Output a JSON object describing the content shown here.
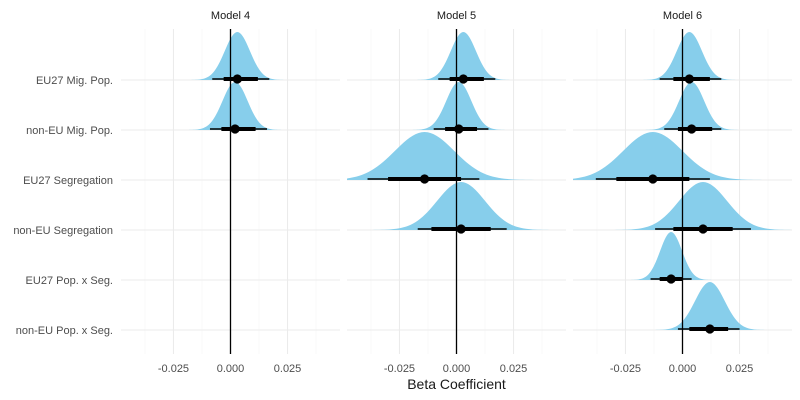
{
  "chart_data": {
    "type": "ridge-interval",
    "xlabel": "Beta Coefficient",
    "ylabel": "",
    "xlim": [
      -0.048,
      0.048
    ],
    "x_ticks": [
      -0.025,
      0.0,
      0.025
    ],
    "x_tick_labels": [
      "-0.025",
      "0.000",
      "0.025"
    ],
    "categories": [
      "EU27 Mig. Pop.",
      "non-EU Mig. Pop.",
      "EU27 Segregation",
      "non-EU Segregation",
      "EU27 Pop. x Seg.",
      "non-EU Pop. x Seg."
    ],
    "facets": [
      {
        "title": "Model 4",
        "estimates": [
          {
            "term": "EU27 Mig. Pop.",
            "mean": 0.003,
            "sd": 0.0055,
            "ci66": [
              -0.003,
              0.012
            ],
            "ci95": [
              -0.008,
              0.017
            ]
          },
          {
            "term": "non-EU Mig. Pop.",
            "mean": 0.002,
            "sd": 0.0055,
            "ci66": [
              -0.004,
              0.011
            ],
            "ci95": [
              -0.009,
              0.016
            ]
          }
        ]
      },
      {
        "title": "Model 5",
        "estimates": [
          {
            "term": "EU27 Mig. Pop.",
            "mean": 0.003,
            "sd": 0.0055,
            "ci66": [
              -0.003,
              0.012
            ],
            "ci95": [
              -0.008,
              0.017
            ]
          },
          {
            "term": "non-EU Mig. Pop.",
            "mean": 0.001,
            "sd": 0.0055,
            "ci66": [
              -0.005,
              0.009
            ],
            "ci95": [
              -0.01,
              0.014
            ]
          },
          {
            "term": "EU27 Segregation",
            "mean": -0.014,
            "sd": 0.013,
            "ci66": [
              -0.03,
              0.002
            ],
            "ci95": [
              -0.039,
              0.01
            ]
          },
          {
            "term": "non-EU Segregation",
            "mean": 0.002,
            "sd": 0.0105,
            "ci66": [
              -0.011,
              0.015
            ],
            "ci95": [
              -0.017,
              0.022
            ]
          }
        ]
      },
      {
        "title": "Model 6",
        "estimates": [
          {
            "term": "EU27 Mig. Pop.",
            "mean": 0.003,
            "sd": 0.0055,
            "ci66": [
              -0.004,
              0.012
            ],
            "ci95": [
              -0.01,
              0.017
            ]
          },
          {
            "term": "non-EU Mig. Pop.",
            "mean": 0.004,
            "sd": 0.0055,
            "ci66": [
              -0.002,
              0.013
            ],
            "ci95": [
              -0.008,
              0.017
            ]
          },
          {
            "term": "EU27 Segregation",
            "mean": -0.013,
            "sd": 0.013,
            "ci66": [
              -0.029,
              0.003
            ],
            "ci95": [
              -0.038,
              0.012
            ]
          },
          {
            "term": "non-EU Segregation",
            "mean": 0.009,
            "sd": 0.0105,
            "ci66": [
              -0.004,
              0.022
            ],
            "ci95": [
              -0.012,
              0.03
            ]
          },
          {
            "term": "EU27 Pop. x Seg.",
            "mean": -0.005,
            "sd": 0.0048,
            "ci66": [
              -0.01,
              0.0
            ],
            "ci95": [
              -0.014,
              0.004
            ]
          },
          {
            "term": "non-EU Pop. x Seg.",
            "mean": 0.012,
            "sd": 0.0065,
            "ci66": [
              0.003,
              0.02
            ],
            "ci95": [
              -0.002,
              0.025
            ]
          }
        ]
      }
    ],
    "reference_line": 0,
    "grid": true,
    "legend": "none",
    "colors": {
      "density_fill": "#87ceeb",
      "interval": "#000000",
      "point": "#000000",
      "grid_major": "#ebebeb",
      "grid_minor": "#f5f5f5",
      "reference_line": "#000000"
    }
  }
}
